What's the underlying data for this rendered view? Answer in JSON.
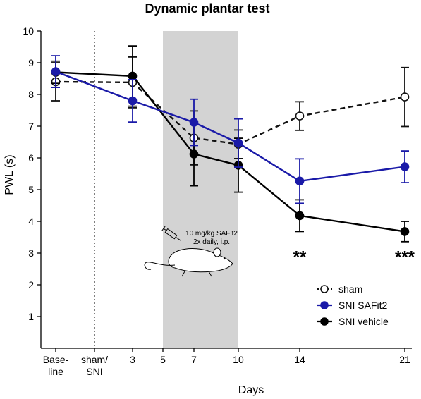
{
  "chart_data": {
    "type": "line",
    "title": "Dynamic plantar test",
    "xlabel": "Days",
    "ylabel": "PWL (s)",
    "ylim": [
      0,
      10
    ],
    "yticks": [
      1,
      2,
      3,
      4,
      5,
      6,
      7,
      8,
      9,
      10
    ],
    "x_positions": [
      {
        "key": "baseline",
        "lines": [
          "Base-",
          "line"
        ]
      },
      {
        "key": "sham_sni",
        "lines": [
          "sham/",
          "SNI"
        ]
      },
      {
        "key": "d3",
        "lines": [
          "3"
        ]
      },
      {
        "key": "d5",
        "lines": [
          "5"
        ]
      },
      {
        "key": "d7",
        "lines": [
          "7"
        ]
      },
      {
        "key": "d10",
        "lines": [
          "10"
        ]
      },
      {
        "key": "d14",
        "lines": [
          "14"
        ]
      },
      {
        "key": "d21",
        "lines": [
          "21"
        ]
      }
    ],
    "treatment_window": {
      "from": "d5",
      "to": "d10",
      "color": "#d3d3d3"
    },
    "surgery_marker": "sham_sni",
    "annotation": {
      "lines": [
        "10 mg/kg SAFit2",
        "2x daily, i.p."
      ],
      "icons": [
        "syringe-icon",
        "mouse-icon"
      ]
    },
    "series": [
      {
        "name": "sham",
        "color": "#111111",
        "marker": "open-circle",
        "dashed": true,
        "points": [
          {
            "x": "baseline",
            "y": 8.4,
            "err": 0.6
          },
          {
            "x": "d3",
            "y": 8.38,
            "err": 0.8
          },
          {
            "x": "d7",
            "y": 6.63,
            "err": 0.85
          },
          {
            "x": "d10",
            "y": 6.43,
            "err": 0.45
          },
          {
            "x": "d14",
            "y": 7.32,
            "err": 0.45
          },
          {
            "x": "d21",
            "y": 7.92,
            "err": 0.93
          }
        ]
      },
      {
        "name": "SNI SAFit2",
        "color": "#1a1aa8",
        "marker": "filled-circle",
        "dashed": false,
        "points": [
          {
            "x": "baseline",
            "y": 8.72,
            "err": 0.5
          },
          {
            "x": "d3",
            "y": 7.8,
            "err": 0.67
          },
          {
            "x": "d7",
            "y": 7.12,
            "err": 0.73
          },
          {
            "x": "d10",
            "y": 6.47,
            "err": 0.76
          },
          {
            "x": "d14",
            "y": 5.27,
            "err": 0.7
          },
          {
            "x": "d21",
            "y": 5.72,
            "err": 0.5
          }
        ]
      },
      {
        "name": "SNI vehicle",
        "color": "#000000",
        "marker": "filled-circle",
        "dashed": false,
        "points": [
          {
            "x": "baseline",
            "y": 8.7,
            "err": 0.35
          },
          {
            "x": "d3",
            "y": 8.58,
            "err": 0.95
          },
          {
            "x": "d7",
            "y": 6.12,
            "err": 1.0
          },
          {
            "x": "d10",
            "y": 5.77,
            "err": 0.85
          },
          {
            "x": "d14",
            "y": 4.18,
            "err": 0.5
          },
          {
            "x": "d21",
            "y": 3.68,
            "err": 0.32
          }
        ]
      }
    ],
    "significance": [
      {
        "x": "d14",
        "label": "**"
      },
      {
        "x": "d21",
        "label": "***"
      }
    ],
    "legend": {
      "position": "bottom-right"
    }
  }
}
